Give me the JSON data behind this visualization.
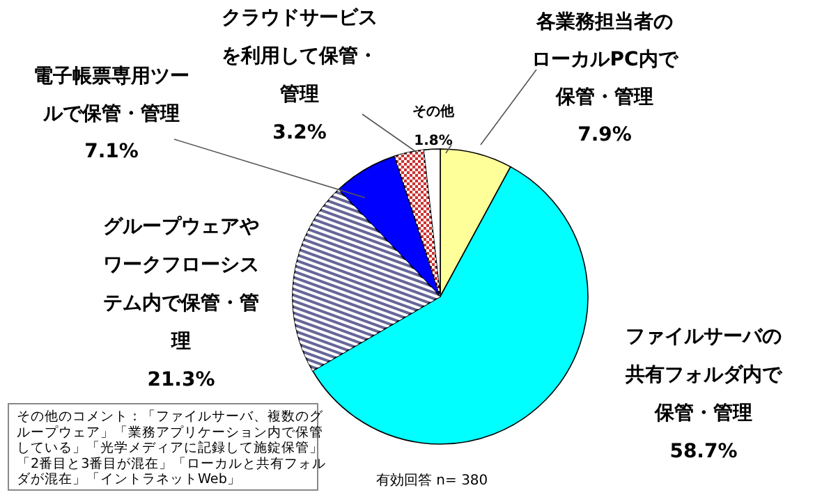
{
  "chart_data": {
    "type": "pie",
    "categories": [
      "各業務担当者のローカルPC内で保管・管理",
      "ファイルサーバの共有フォルダ内で保管・管理",
      "グループウェアやワークフローシステム内で保管・管理",
      "電子帳票専用ツールで保管・管理",
      "クラウドサービスを利用して保管・管理",
      "その他"
    ],
    "values": [
      7.9,
      58.7,
      21.3,
      7.1,
      3.2,
      1.8
    ],
    "value_labels": [
      "7.9%",
      "58.7%",
      "21.3%",
      "7.1%",
      "3.2%",
      "1.8%"
    ],
    "colors": [
      "#ffff99",
      "#00ffff",
      "#666699",
      "#0000ff",
      "#cc3333",
      "#ffffff"
    ],
    "annotations": [
      "その他のコメント：「ファイルサーバ、複数のグループウェア」「業務アプリケーション内で保管している」「光学メディアに記録して施錠保管」「2番目と3番目が混在」「ローカルと共有フォルダが混在」「イントラネットWeb」",
      "有効回答 n= 380"
    ]
  }
}
